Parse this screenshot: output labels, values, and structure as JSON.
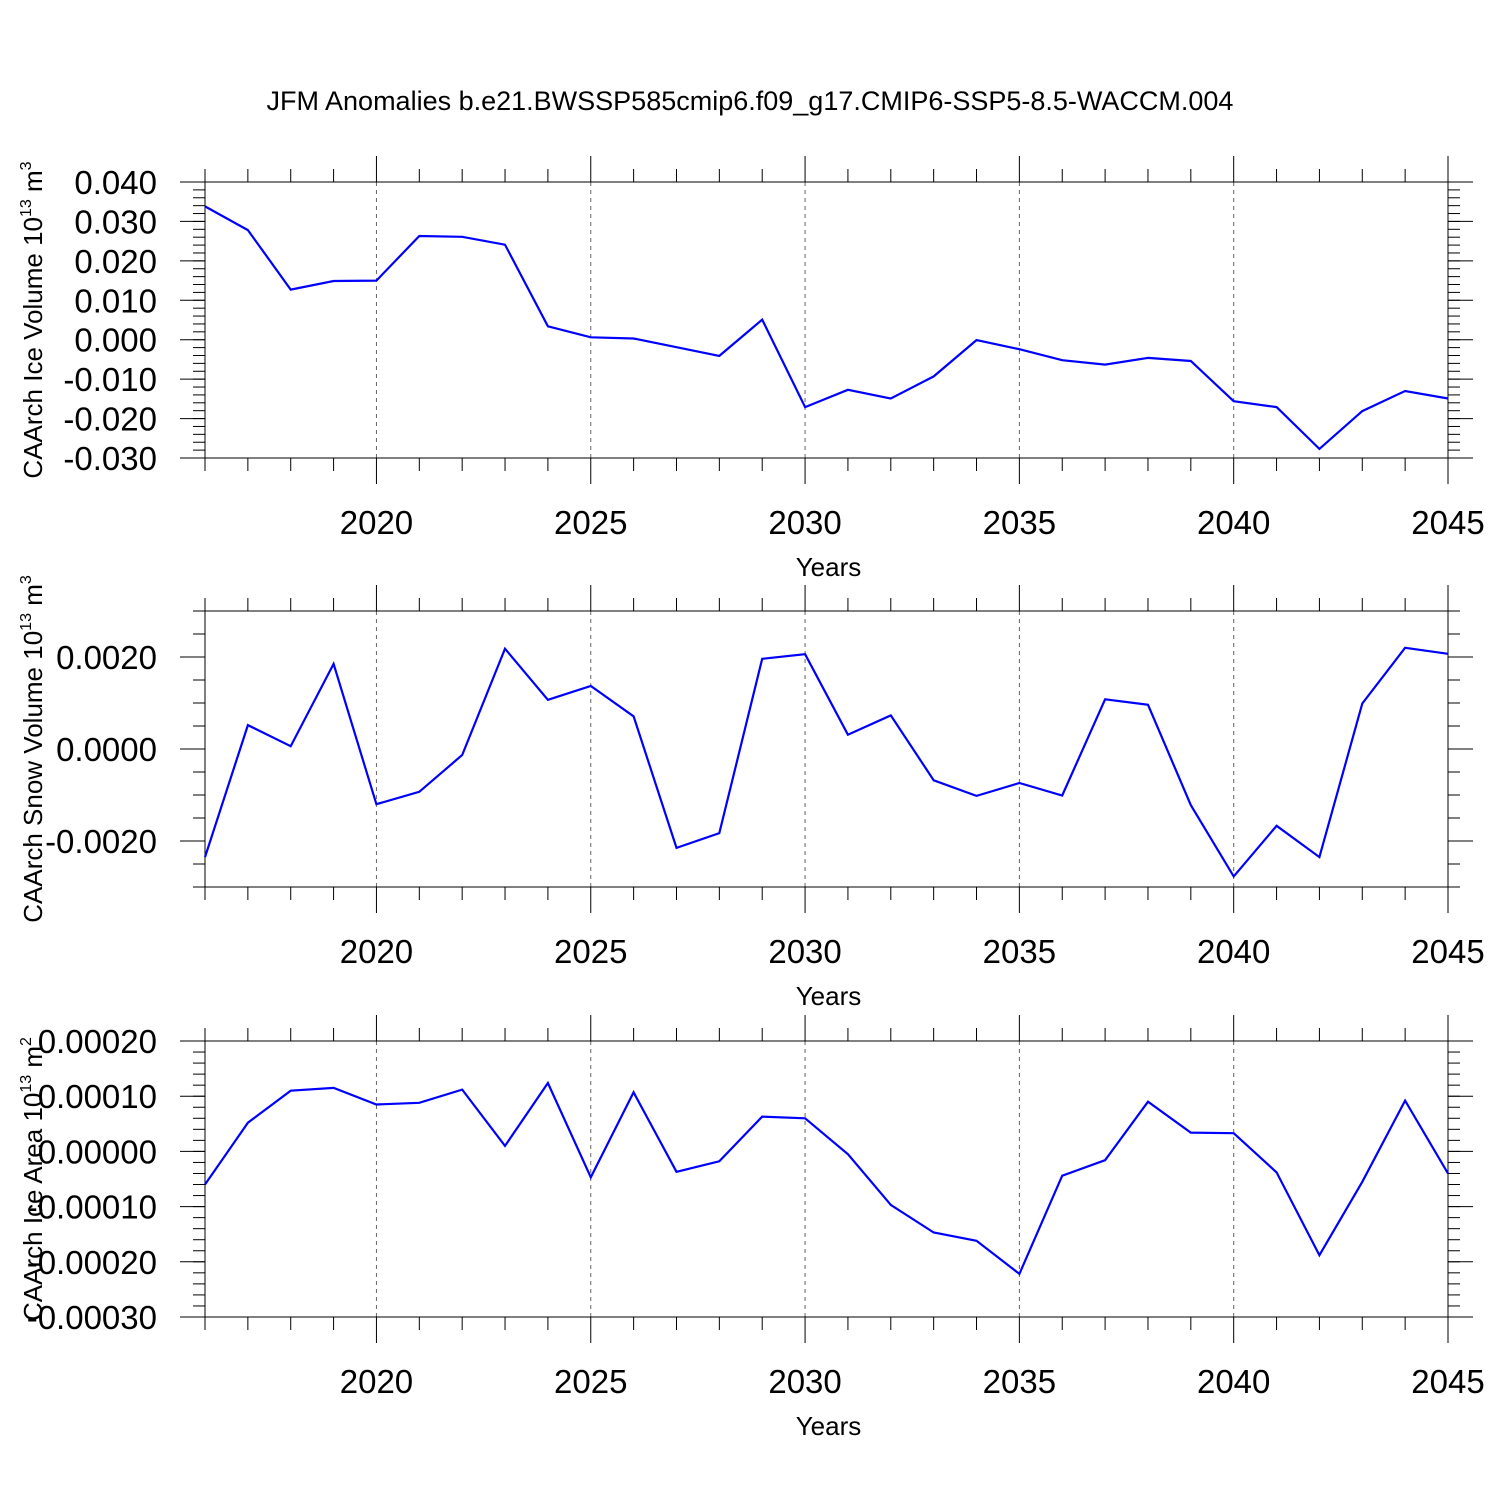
{
  "figure": {
    "title": "JFM Anomalies b.e21.BWSSP585cmip6.f09_g17.CMIP6-SSP5-8.5-WACCM.004",
    "line_color": "#0000ff"
  },
  "chart_data": [
    {
      "type": "line",
      "name": "ice-volume",
      "ylabel_main": "CAArch Ice Volume 10",
      "ylabel_sup": "13",
      "ylabel_unit": " m",
      "ylabel_unit_sup": "3",
      "xlabel": "Years",
      "xlim": [
        2016,
        2045
      ],
      "ylim": [
        -0.03,
        0.04
      ],
      "yticks": [
        0.04,
        0.03,
        0.02,
        0.01,
        0.0,
        -0.01,
        -0.02,
        -0.03
      ],
      "ytick_labels": [
        "0.040",
        "0.030",
        "0.020",
        "0.010",
        "0.000",
        "-0.010",
        "-0.020",
        "-0.030"
      ],
      "yminor_step": 0.002,
      "xticks": [
        2020,
        2025,
        2030,
        2035,
        2040,
        2045
      ],
      "xtick_labels": [
        "2020",
        "2025",
        "2030",
        "2035",
        "2040",
        "2045"
      ],
      "grid_x": [
        2020,
        2025,
        2030,
        2035,
        2040
      ],
      "x": [
        2016,
        2017,
        2018,
        2019,
        2020,
        2021,
        2022,
        2023,
        2024,
        2025,
        2026,
        2027,
        2028,
        2029,
        2030,
        2031,
        2032,
        2033,
        2034,
        2035,
        2036,
        2037,
        2038,
        2039,
        2040,
        2041,
        2042,
        2043,
        2044,
        2045
      ],
      "values": [
        0.0338,
        0.0278,
        0.0127,
        0.0149,
        0.015,
        0.0263,
        0.0261,
        0.0241,
        0.0034,
        0.0006,
        0.0003,
        -0.0019,
        -0.0041,
        0.0051,
        -0.0171,
        -0.0127,
        -0.0149,
        -0.0093,
        -0.0001,
        -0.0024,
        -0.0052,
        -0.0063,
        -0.0046,
        -0.0054,
        -0.0156,
        -0.0171,
        -0.0277,
        -0.0181,
        -0.013,
        -0.0149
      ]
    },
    {
      "type": "line",
      "name": "snow-volume",
      "ylabel_main": "CAArch Snow Volume 10",
      "ylabel_sup": "13",
      "ylabel_unit": " m",
      "ylabel_unit_sup": "3",
      "xlabel": "Years",
      "xlim": [
        2016,
        2045
      ],
      "ylim": [
        -0.003,
        0.003
      ],
      "yticks": [
        0.002,
        0.0,
        -0.002
      ],
      "ytick_labels": [
        "0.0020",
        "0.0000",
        "-0.0020"
      ],
      "yminor_step": 0.0005,
      "xticks": [
        2020,
        2025,
        2030,
        2035,
        2040,
        2045
      ],
      "xtick_labels": [
        "2020",
        "2025",
        "2030",
        "2035",
        "2040",
        "2045"
      ],
      "grid_x": [
        2020,
        2025,
        2030,
        2035,
        2040
      ],
      "x": [
        2016,
        2017,
        2018,
        2019,
        2020,
        2021,
        2022,
        2023,
        2024,
        2025,
        2026,
        2027,
        2028,
        2029,
        2030,
        2031,
        2032,
        2033,
        2034,
        2035,
        2036,
        2037,
        2038,
        2039,
        2040,
        2041,
        2042,
        2043,
        2044,
        2045
      ],
      "values": [
        -0.00235,
        0.00052,
        6e-05,
        0.00185,
        -0.0012,
        -0.00093,
        -0.00013,
        0.00218,
        0.00107,
        0.00137,
        0.00071,
        -0.00215,
        -0.00183,
        0.00196,
        0.00206,
        0.00031,
        0.00073,
        -0.00068,
        -0.00102,
        -0.00074,
        -0.00101,
        0.00108,
        0.00096,
        -0.00122,
        -0.00277,
        -0.00167,
        -0.00235,
        0.00099,
        0.0022,
        0.00207
      ]
    },
    {
      "type": "line",
      "name": "ice-area",
      "ylabel_main": "CAArch Ice Area 10",
      "ylabel_sup": "13",
      "ylabel_unit": " m",
      "ylabel_unit_sup": "2",
      "xlabel": "Years",
      "xlim": [
        2016,
        2045
      ],
      "ylim": [
        -0.0003,
        0.0002
      ],
      "yticks": [
        0.0002,
        0.0001,
        0.0,
        -0.0001,
        -0.0002,
        -0.0003
      ],
      "ytick_labels": [
        "0.00020",
        "0.00010",
        "0.00000",
        "-0.00010",
        "-0.00020",
        "-0.00030"
      ],
      "yminor_step": 2e-05,
      "xticks": [
        2020,
        2025,
        2030,
        2035,
        2040,
        2045
      ],
      "xtick_labels": [
        "2020",
        "2025",
        "2030",
        "2035",
        "2040",
        "2045"
      ],
      "grid_x": [
        2020,
        2025,
        2030,
        2035,
        2040
      ],
      "x": [
        2016,
        2017,
        2018,
        2019,
        2020,
        2021,
        2022,
        2023,
        2024,
        2025,
        2026,
        2027,
        2028,
        2029,
        2030,
        2031,
        2032,
        2033,
        2034,
        2035,
        2036,
        2037,
        2038,
        2039,
        2040,
        2041,
        2042,
        2043,
        2044,
        2045
      ],
      "values": [
        -6e-05,
        5.2e-05,
        0.00011,
        0.000115,
        8.5e-05,
        8.8e-05,
        0.000112,
        1e-05,
        0.000124,
        -4.7e-05,
        0.000107,
        -3.7e-05,
        -1.8e-05,
        6.3e-05,
        6e-05,
        -5e-06,
        -9.7e-05,
        -0.000147,
        -0.000162,
        -0.000222,
        -4.4e-05,
        -1.6e-05,
        9e-05,
        3.4e-05,
        3.3e-05,
        -3.8e-05,
        -0.000188,
        -5.5e-05,
        9.2e-05,
        -4e-05
      ]
    }
  ]
}
